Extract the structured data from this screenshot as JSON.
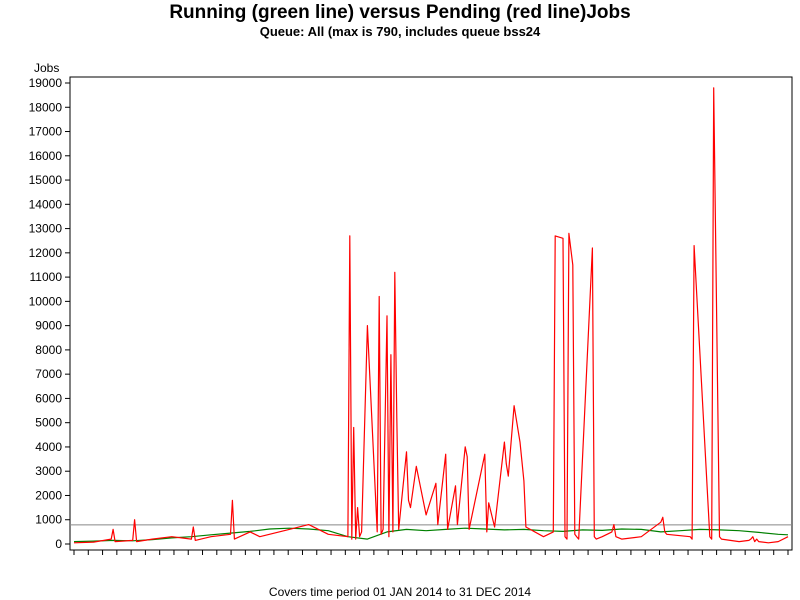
{
  "colors": {
    "running": "#008000",
    "pending": "#ff0000",
    "reference": "#888888",
    "axis": "#000000"
  },
  "chart_data": {
    "type": "line",
    "title": "Running (green line) versus Pending (red line)Jobs",
    "subtitle": "Queue: All (max is 790, includes queue bss24",
    "ylabel": "Jobs",
    "footnote": "Covers time period 01 JAN 2014 to 31 DEC 2014",
    "ylim": [
      0,
      19500
    ],
    "xlim": [
      0,
      365
    ],
    "yticks": [
      0,
      1000,
      2000,
      3000,
      4000,
      5000,
      6000,
      7000,
      8000,
      9000,
      10000,
      11000,
      12000,
      13000,
      14000,
      15000,
      16000,
      17000,
      18000,
      19000
    ],
    "reference_line": 790,
    "series": [
      {
        "name": "Running",
        "color": "#008000",
        "x": [
          0,
          10,
          20,
          30,
          40,
          50,
          60,
          70,
          80,
          90,
          100,
          110,
          120,
          130,
          140,
          150,
          160,
          170,
          180,
          190,
          200,
          210,
          220,
          230,
          240,
          250,
          260,
          270,
          280,
          290,
          300,
          310,
          320,
          330,
          340,
          350,
          360,
          365
        ],
        "values": [
          100,
          120,
          150,
          130,
          180,
          250,
          300,
          380,
          450,
          520,
          620,
          650,
          620,
          550,
          300,
          200,
          500,
          600,
          550,
          600,
          650,
          620,
          580,
          600,
          550,
          520,
          580,
          560,
          620,
          600,
          500,
          550,
          600,
          580,
          550,
          480,
          400,
          380
        ]
      },
      {
        "name": "Pending",
        "color": "#ff0000",
        "x": [
          0,
          10,
          19,
          20,
          21,
          30,
          31,
          32,
          40,
          50,
          60,
          61,
          62,
          70,
          80,
          81,
          82,
          90,
          95,
          110,
          120,
          130,
          140,
          141,
          142,
          143,
          144,
          145,
          146,
          147,
          150,
          155,
          156,
          157,
          158,
          160,
          161,
          162,
          163,
          164,
          165,
          166,
          170,
          171,
          172,
          175,
          180,
          185,
          186,
          190,
          191,
          195,
          196,
          200,
          201,
          202,
          210,
          211,
          212,
          215,
          220,
          221,
          222,
          225,
          228,
          230,
          231,
          240,
          245,
          246,
          250,
          251,
          252,
          253,
          255,
          256,
          257,
          258,
          265,
          266,
          267,
          270,
          275,
          276,
          277,
          280,
          290,
          300,
          301,
          302,
          303,
          315,
          316,
          317,
          325,
          326,
          327,
          330,
          331,
          340,
          345,
          346,
          347,
          348,
          349,
          350,
          355,
          360,
          365
        ],
        "values": [
          50,
          80,
          200,
          600,
          100,
          150,
          1000,
          100,
          200,
          300,
          200,
          700,
          150,
          300,
          400,
          1800,
          200,
          500,
          300,
          600,
          800,
          400,
          300,
          12700,
          200,
          4800,
          200,
          1500,
          300,
          500,
          9000,
          500,
          10200,
          400,
          600,
          9400,
          300,
          7800,
          500,
          11200,
          5200,
          600,
          3800,
          1800,
          1500,
          3200,
          1200,
          2500,
          800,
          3700,
          600,
          2400,
          800,
          4000,
          3600,
          600,
          3700,
          500,
          1700,
          700,
          4200,
          3300,
          2800,
          5700,
          4200,
          2600,
          700,
          300,
          500,
          12700,
          12600,
          300,
          200,
          12800,
          11500,
          400,
          300,
          200,
          12200,
          300,
          200,
          300,
          500,
          800,
          300,
          200,
          300,
          900,
          1100,
          500,
          400,
          300,
          200,
          12300,
          300,
          200,
          18800,
          300,
          200,
          100,
          150,
          200,
          300,
          100,
          200,
          100,
          50,
          100,
          300
        ]
      }
    ]
  }
}
